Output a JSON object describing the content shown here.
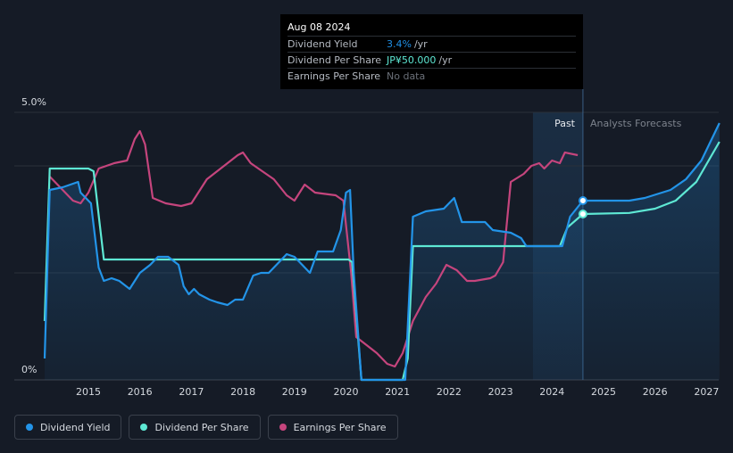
{
  "tooltip": {
    "date": "Aug 08 2024",
    "rows": [
      {
        "label": "Dividend Yield",
        "value": "3.4%",
        "unit": "/yr"
      },
      {
        "label": "Dividend Per Share",
        "value": "JP¥50.000",
        "unit": "/yr"
      },
      {
        "label": "Earnings Per Share",
        "value": "No data",
        "unit": ""
      }
    ]
  },
  "region_labels": {
    "past": "Past",
    "forecast": "Analysts Forecasts"
  },
  "legend": [
    {
      "label": "Dividend Yield",
      "color": "#2394e8"
    },
    {
      "label": "Dividend Per Share",
      "color": "#5ee8d4"
    },
    {
      "label": "Earnings Per Share",
      "color": "#c5457d"
    }
  ],
  "chart_data": {
    "type": "line",
    "y_tick_labels": [
      "5.0%",
      "0%"
    ],
    "x_tick_labels": [
      "2015",
      "2016",
      "2017",
      "2018",
      "2019",
      "2020",
      "2021",
      "2022",
      "2023",
      "2024",
      "2025",
      "2026",
      "2027"
    ],
    "x_range": [
      2014.15,
      2027.25
    ],
    "ylim": [
      0,
      5.0
    ],
    "grid": true,
    "past_forecast_split": 2024.6,
    "series": [
      {
        "name": "Dividend Yield",
        "color": "#2394e8",
        "points": [
          [
            2014.15,
            0.4
          ],
          [
            2014.25,
            3.55
          ],
          [
            2014.5,
            3.6
          ],
          [
            2014.8,
            3.7
          ],
          [
            2014.85,
            3.5
          ],
          [
            2015.05,
            3.3
          ],
          [
            2015.2,
            2.1
          ],
          [
            2015.3,
            1.85
          ],
          [
            2015.45,
            1.9
          ],
          [
            2015.6,
            1.85
          ],
          [
            2015.8,
            1.7
          ],
          [
            2016.0,
            2.0
          ],
          [
            2016.2,
            2.15
          ],
          [
            2016.35,
            2.3
          ],
          [
            2016.55,
            2.3
          ],
          [
            2016.75,
            2.15
          ],
          [
            2016.85,
            1.75
          ],
          [
            2016.95,
            1.6
          ],
          [
            2017.05,
            1.7
          ],
          [
            2017.15,
            1.6
          ],
          [
            2017.35,
            1.5
          ],
          [
            2017.5,
            1.45
          ],
          [
            2017.7,
            1.4
          ],
          [
            2017.85,
            1.5
          ],
          [
            2018.0,
            1.5
          ],
          [
            2018.2,
            1.95
          ],
          [
            2018.35,
            2.0
          ],
          [
            2018.5,
            2.0
          ],
          [
            2018.7,
            2.2
          ],
          [
            2018.85,
            2.35
          ],
          [
            2019.0,
            2.3
          ],
          [
            2019.15,
            2.15
          ],
          [
            2019.3,
            2.0
          ],
          [
            2019.45,
            2.4
          ],
          [
            2019.75,
            2.4
          ],
          [
            2019.9,
            2.8
          ],
          [
            2020.0,
            3.5
          ],
          [
            2020.08,
            3.55
          ],
          [
            2020.15,
            2.0
          ],
          [
            2020.3,
            0.0
          ],
          [
            2021.15,
            0.0
          ],
          [
            2021.3,
            3.05
          ],
          [
            2021.55,
            3.15
          ],
          [
            2021.9,
            3.2
          ],
          [
            2022.1,
            3.4
          ],
          [
            2022.25,
            2.95
          ],
          [
            2022.7,
            2.95
          ],
          [
            2022.85,
            2.8
          ],
          [
            2023.2,
            2.75
          ],
          [
            2023.4,
            2.65
          ],
          [
            2023.5,
            2.5
          ],
          [
            2024.2,
            2.5
          ],
          [
            2024.35,
            3.05
          ],
          [
            2024.6,
            3.35
          ],
          [
            2025.5,
            3.35
          ],
          [
            2025.8,
            3.4
          ],
          [
            2026.3,
            3.55
          ],
          [
            2026.6,
            3.75
          ],
          [
            2026.9,
            4.1
          ],
          [
            2027.25,
            4.8
          ]
        ]
      },
      {
        "name": "Dividend Per Share",
        "color": "#5ee8d4",
        "points": [
          [
            2014.15,
            1.1
          ],
          [
            2014.25,
            3.95
          ],
          [
            2014.4,
            3.95
          ],
          [
            2015.0,
            3.95
          ],
          [
            2015.1,
            3.9
          ],
          [
            2015.3,
            2.25
          ],
          [
            2020.05,
            2.25
          ],
          [
            2020.12,
            2.2
          ],
          [
            2020.3,
            0.0
          ],
          [
            2021.1,
            0.0
          ],
          [
            2021.2,
            0.4
          ],
          [
            2021.3,
            2.5
          ],
          [
            2024.15,
            2.5
          ],
          [
            2024.3,
            2.85
          ],
          [
            2024.6,
            3.1
          ],
          [
            2025.5,
            3.12
          ],
          [
            2026.0,
            3.2
          ],
          [
            2026.4,
            3.35
          ],
          [
            2026.8,
            3.7
          ],
          [
            2027.25,
            4.45
          ]
        ]
      },
      {
        "name": "Earnings Per Share",
        "color": "#c5457d",
        "points": [
          [
            2014.25,
            3.8
          ],
          [
            2014.5,
            3.55
          ],
          [
            2014.7,
            3.35
          ],
          [
            2014.85,
            3.3
          ],
          [
            2015.0,
            3.5
          ],
          [
            2015.2,
            3.95
          ],
          [
            2015.5,
            4.05
          ],
          [
            2015.75,
            4.1
          ],
          [
            2015.9,
            4.5
          ],
          [
            2016.0,
            4.65
          ],
          [
            2016.1,
            4.4
          ],
          [
            2016.25,
            3.4
          ],
          [
            2016.5,
            3.3
          ],
          [
            2016.8,
            3.25
          ],
          [
            2017.0,
            3.3
          ],
          [
            2017.3,
            3.75
          ],
          [
            2017.7,
            4.05
          ],
          [
            2017.9,
            4.2
          ],
          [
            2018.0,
            4.25
          ],
          [
            2018.15,
            4.05
          ],
          [
            2018.3,
            3.95
          ],
          [
            2018.6,
            3.75
          ],
          [
            2018.85,
            3.45
          ],
          [
            2019.0,
            3.35
          ],
          [
            2019.2,
            3.65
          ],
          [
            2019.4,
            3.5
          ],
          [
            2019.8,
            3.45
          ],
          [
            2019.95,
            3.35
          ],
          [
            2020.1,
            2.0
          ],
          [
            2020.2,
            0.8
          ],
          [
            2020.4,
            0.65
          ],
          [
            2020.6,
            0.5
          ],
          [
            2020.8,
            0.3
          ],
          [
            2020.95,
            0.25
          ],
          [
            2021.1,
            0.5
          ],
          [
            2021.3,
            1.1
          ],
          [
            2021.55,
            1.55
          ],
          [
            2021.75,
            1.8
          ],
          [
            2021.95,
            2.15
          ],
          [
            2022.15,
            2.05
          ],
          [
            2022.35,
            1.85
          ],
          [
            2022.5,
            1.85
          ],
          [
            2022.8,
            1.9
          ],
          [
            2022.9,
            1.95
          ],
          [
            2023.05,
            2.2
          ],
          [
            2023.2,
            3.7
          ],
          [
            2023.45,
            3.85
          ],
          [
            2023.6,
            4.0
          ],
          [
            2023.75,
            4.05
          ],
          [
            2023.85,
            3.95
          ],
          [
            2024.0,
            4.1
          ],
          [
            2024.15,
            4.05
          ],
          [
            2024.25,
            4.25
          ],
          [
            2024.5,
            4.2
          ]
        ]
      }
    ]
  }
}
